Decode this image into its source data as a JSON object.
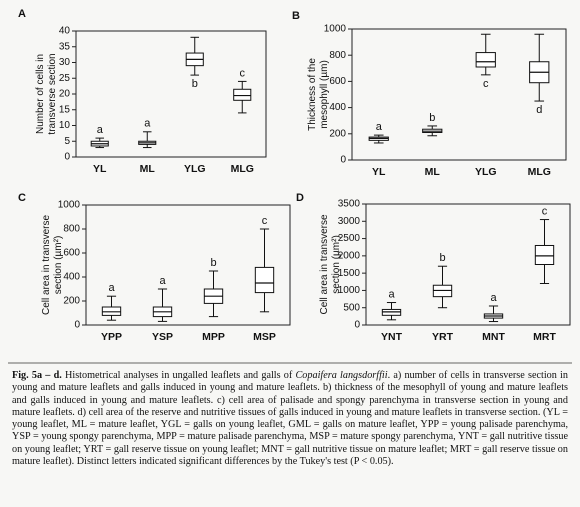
{
  "chart_data": [
    {
      "type": "box",
      "title": "A",
      "ylabel": [
        "Number of cells in",
        "transverse section"
      ],
      "categories": [
        "YL",
        "ML",
        "YLG",
        "MLG"
      ],
      "whisker_low": [
        3,
        3,
        26,
        14
      ],
      "q1": [
        3.5,
        4,
        29,
        18
      ],
      "median": [
        4.2,
        4.5,
        31,
        19.5
      ],
      "q3": [
        5,
        5,
        33,
        21.5
      ],
      "whisker_high": [
        6,
        8,
        38,
        24
      ],
      "letters": [
        "a",
        "a",
        "b",
        "c"
      ],
      "letter_position": [
        "above",
        "above",
        "below",
        "above"
      ],
      "ylim": [
        0,
        40
      ],
      "yticks": [
        0,
        5,
        10,
        15,
        20,
        25,
        30,
        35,
        40
      ],
      "color": "#111111"
    },
    {
      "type": "box",
      "title": "B",
      "ylabel": [
        "Thickness of the",
        "mesophyll (µm)"
      ],
      "categories": [
        "YL",
        "ML",
        "YLG",
        "MLG"
      ],
      "whisker_low": [
        130,
        185,
        650,
        450
      ],
      "q1": [
        150,
        210,
        710,
        590
      ],
      "median": [
        165,
        220,
        750,
        670
      ],
      "q3": [
        175,
        235,
        820,
        750
      ],
      "whisker_high": [
        190,
        260,
        960,
        960
      ],
      "letters": [
        "a",
        "b",
        "c",
        "d"
      ],
      "letter_position": [
        "above",
        "above",
        "below",
        "below"
      ],
      "ylim": [
        0,
        1000
      ],
      "yticks": [
        0,
        200,
        400,
        600,
        800,
        1000
      ],
      "color": "#111111"
    },
    {
      "type": "box",
      "title": "C",
      "ylabel": [
        "Cell area in transverse",
        "section (µm²)"
      ],
      "categories": [
        "YPP",
        "YSP",
        "MPP",
        "MSP"
      ],
      "whisker_low": [
        40,
        30,
        70,
        110
      ],
      "q1": [
        80,
        70,
        180,
        270
      ],
      "median": [
        110,
        110,
        240,
        350
      ],
      "q3": [
        150,
        150,
        300,
        480
      ],
      "whisker_high": [
        240,
        300,
        450,
        800
      ],
      "letters": [
        "a",
        "a",
        "b",
        "c"
      ],
      "letter_position": [
        "above",
        "above",
        "above",
        "above"
      ],
      "ylim": [
        0,
        1000
      ],
      "yticks": [
        0,
        200,
        400,
        600,
        800,
        1000
      ],
      "color": "#111111"
    },
    {
      "type": "box",
      "title": "D",
      "ylabel": [
        "Cell area in transverse",
        "section (µm²)"
      ],
      "categories": [
        "YNT",
        "YRT",
        "MNT",
        "MRT"
      ],
      "whisker_low": [
        150,
        500,
        100,
        1200
      ],
      "q1": [
        280,
        820,
        200,
        1750
      ],
      "median": [
        380,
        1000,
        260,
        2000
      ],
      "q3": [
        450,
        1150,
        320,
        2300
      ],
      "whisker_high": [
        650,
        1700,
        550,
        3050
      ],
      "letters": [
        "a",
        "b",
        "a",
        "c"
      ],
      "letter_position": [
        "above",
        "above",
        "above",
        "above"
      ],
      "ylim": [
        0,
        3500
      ],
      "yticks": [
        0,
        500,
        1000,
        1500,
        2000,
        2500,
        3000,
        3500
      ],
      "color": "#111111"
    }
  ],
  "caption": {
    "label": "Fig. 5a – d.",
    "before": "Histometrical analyses in ungalled leaflets and galls of ",
    "species": "Copaifera langsdorffii",
    "after": ". a) number of cells in transverse section in young and mature leaflets and galls induced in young and mature leaflets. b) thickness of the mesophyll of young and mature leaflets and galls induced in young and mature leaflets. c) cell area of palisade and spongy parenchyma in transverse section in young and mature leaflets. d) cell area of the reserve and nutritive tissues of galls induced in young and mature leaflets in transverse section. (YL = young leaflet, ML = mature leaflet, YGL = galls on young leaflet, GML = galls on mature leaflet, YPP = young palisade parenchyma, YSP = young spongy parenchyma, MPP = mature palisade parenchyma, MSP = mature spongy parenchyma, YNT = gall nutritive tissue on young leaflet; YRT = gall reserve tissue on young leaflet; MNT = gall nutritive tissue on mature leaflet; MRT = gall reserve tissue on mature leaflet). Distinct letters indicated significant differences by the Tukey's test (P < 0.05)."
  }
}
